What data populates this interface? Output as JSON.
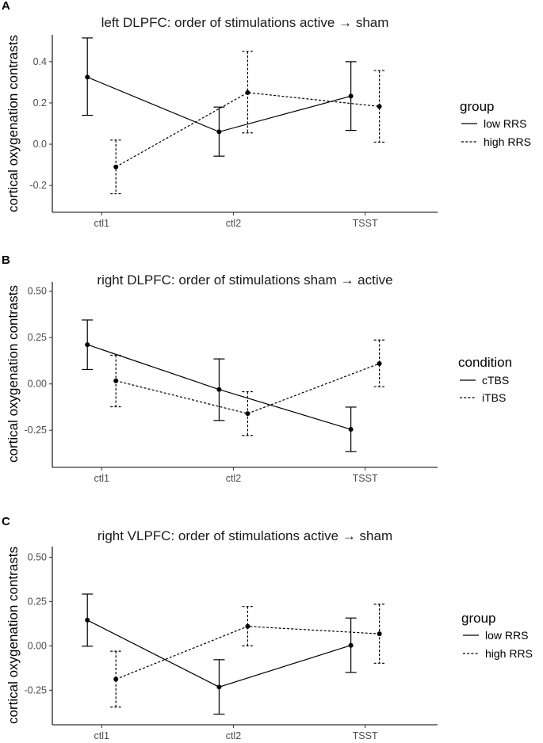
{
  "chart_data": [
    {
      "type": "line",
      "panel_letter": "A",
      "title": "left DLPFC: order of stimulations active → sham",
      "ylabel": "cortical oxygenation contrasts",
      "xlabel": "",
      "categories": [
        "ctl1",
        "ctl2",
        "TSST"
      ],
      "ylim": [
        -0.33,
        0.53
      ],
      "yticks": [
        -0.2,
        0.0,
        0.2,
        0.4
      ],
      "ytick_labels": [
        "-0.2",
        "0.0",
        "0.2",
        "0.4"
      ],
      "grid": false,
      "legend": {
        "title": "group",
        "placement": "right"
      },
      "series": [
        {
          "name": "low RRS",
          "dash": "solid",
          "values": [
            0.325,
            0.06,
            0.233
          ],
          "lower": [
            0.14,
            -0.058,
            0.067
          ],
          "upper": [
            0.515,
            0.18,
            0.4
          ]
        },
        {
          "name": "high RRS",
          "dash": "dotted",
          "values": [
            -0.11,
            0.25,
            0.183
          ],
          "lower": [
            -0.24,
            0.055,
            0.01
          ],
          "upper": [
            0.02,
            0.45,
            0.357
          ]
        }
      ]
    },
    {
      "type": "line",
      "panel_letter": "B",
      "title": "right DLPFC: order of stimulations sham → active",
      "ylabel": "cortical oxygenation contrasts",
      "xlabel": "",
      "categories": [
        "ctl1",
        "ctl2",
        "TSST"
      ],
      "ylim": [
        -0.45,
        0.55
      ],
      "yticks": [
        -0.25,
        0.0,
        0.25,
        0.5
      ],
      "ytick_labels": [
        "-0.25",
        "0.00",
        "0.25",
        "0.50"
      ],
      "grid": false,
      "legend": {
        "title": "condition",
        "placement": "right"
      },
      "series": [
        {
          "name": "cTBS",
          "dash": "solid",
          "values": [
            0.212,
            -0.03,
            -0.245
          ],
          "lower": [
            0.078,
            -0.197,
            -0.365
          ],
          "upper": [
            0.345,
            0.135,
            -0.125
          ]
        },
        {
          "name": "iTBS",
          "dash": "dotted",
          "values": [
            0.017,
            -0.16,
            0.11
          ],
          "lower": [
            -0.123,
            -0.278,
            -0.015
          ],
          "upper": [
            0.155,
            -0.042,
            0.237
          ]
        }
      ]
    },
    {
      "type": "line",
      "panel_letter": "C",
      "title": "right VLPFC: order of stimulations active → sham",
      "ylabel": "cortical oxygenation contrasts",
      "xlabel": "",
      "categories": [
        "ctl1",
        "ctl2",
        "TSST"
      ],
      "ylim": [
        -0.445,
        0.56
      ],
      "yticks": [
        -0.25,
        0.0,
        0.25,
        0.5
      ],
      "ytick_labels": [
        "-0.25",
        "0.00",
        "0.25",
        "0.50"
      ],
      "grid": false,
      "legend": {
        "title": "group",
        "placement": "right"
      },
      "series": [
        {
          "name": "low RRS",
          "dash": "solid",
          "values": [
            0.145,
            -0.232,
            0.003
          ],
          "lower": [
            -0.002,
            -0.385,
            -0.15
          ],
          "upper": [
            0.292,
            -0.078,
            0.157
          ]
        },
        {
          "name": "high RRS",
          "dash": "dotted",
          "values": [
            -0.188,
            0.11,
            0.068
          ],
          "lower": [
            -0.345,
            0.0,
            -0.098
          ],
          "upper": [
            -0.03,
            0.222,
            0.235
          ]
        }
      ]
    }
  ]
}
